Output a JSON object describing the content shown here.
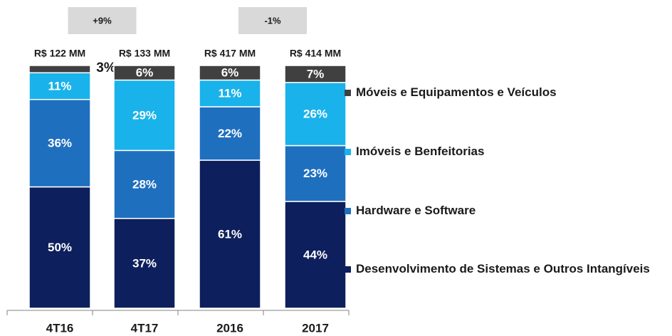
{
  "chart_data": {
    "type": "stacked_bar_100",
    "categories": [
      "4T16",
      "4T17",
      "2016",
      "2017"
    ],
    "totals": [
      "R$ 122 MM",
      "R$ 133 MM",
      "R$ 417 MM",
      "R$ 414 MM"
    ],
    "annotations": [
      "+9%",
      "-1%"
    ],
    "ylim": [
      0,
      100
    ],
    "series": [
      {
        "name": "Desenvolvimento de Sistemas e Outros Intangíveis",
        "color": "#0d1f5c",
        "values": [
          50,
          37,
          61,
          44
        ],
        "value_labels": [
          "50%",
          "37%",
          "61%",
          "44%"
        ]
      },
      {
        "name": "Hardware e Software",
        "color": "#1f6fbf",
        "values": [
          36,
          28,
          22,
          23
        ],
        "value_labels": [
          "36%",
          "28%",
          "22%",
          "23%"
        ]
      },
      {
        "name": "Imóveis e Benfeitorias",
        "color": "#1ab2ea",
        "values": [
          11,
          29,
          11,
          26
        ],
        "value_labels": [
          "11%",
          "29%",
          "11%",
          "26%"
        ]
      },
      {
        "name": "Móveis e Equipamentos e Veículos",
        "color": "#404040",
        "values": [
          3,
          6,
          6,
          7
        ],
        "value_labels": [
          "3%",
          "6%",
          "6%",
          "7%"
        ]
      }
    ]
  }
}
